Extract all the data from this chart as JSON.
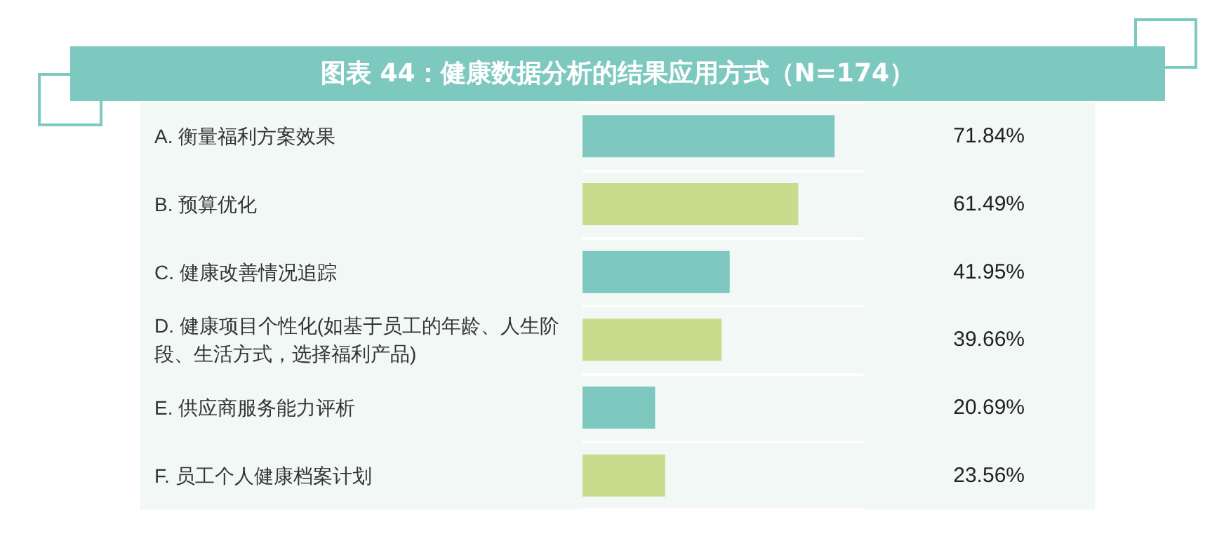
{
  "chart_data": {
    "type": "bar",
    "orientation": "horizontal",
    "title": "图表 44：健康数据分析的结果应用方式（N=174）",
    "categories": [
      "A. 衡量福利方案效果",
      "B. 预算优化",
      "C. 健康改善情况追踪",
      "D. 健康项目个性化(如基于员工的年龄、人生阶段、生活方式，选择福利产品)",
      "E. 供应商服务能力评析",
      "F. 员工个人健康档案计划"
    ],
    "values": [
      71.84,
      61.49,
      41.95,
      39.66,
      20.69,
      23.56
    ],
    "colors": [
      "#7ec8c0",
      "#c9dc8e",
      "#7ec8c0",
      "#c9dc8e",
      "#7ec8c0",
      "#c9dc8e"
    ],
    "value_labels": [
      "71.84%",
      "61.49%",
      "41.95%",
      "39.66%",
      "20.69%",
      "23.56%"
    ]
  }
}
